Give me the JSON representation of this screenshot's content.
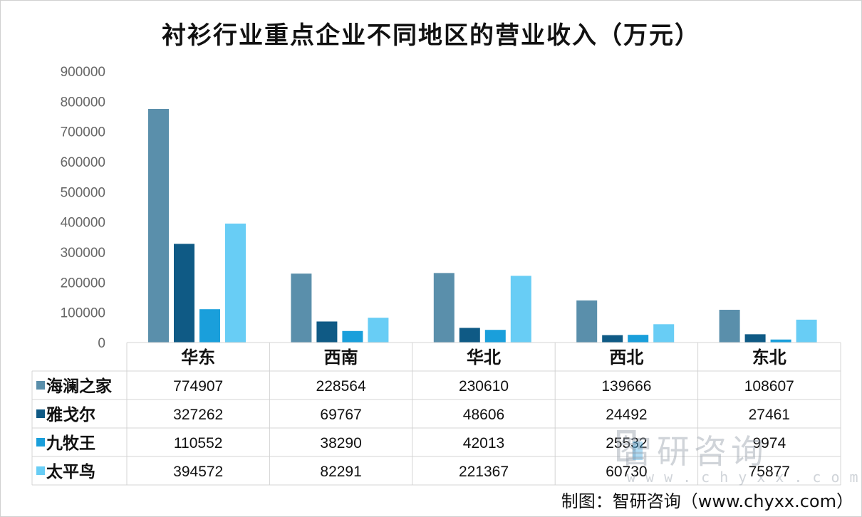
{
  "chart_data": {
    "type": "bar",
    "title": "衬衫行业重点企业不同地区的营业收入（万元）",
    "categories": [
      "华东",
      "西南",
      "华北",
      "西北",
      "东北"
    ],
    "series": [
      {
        "name": "海澜之家",
        "color": "#5a8fab",
        "values": [
          774907,
          228564,
          230610,
          139666,
          108607
        ]
      },
      {
        "name": "雅戈尔",
        "color": "#0f5a85",
        "values": [
          327262,
          69767,
          48606,
          24492,
          27461
        ]
      },
      {
        "name": "九牧王",
        "color": "#1a9fdb",
        "values": [
          110552,
          38290,
          42013,
          25532,
          9974
        ]
      },
      {
        "name": "太平鸟",
        "color": "#68cdf5",
        "values": [
          394572,
          82291,
          221367,
          60730,
          75877
        ]
      }
    ],
    "ylim": [
      0,
      900000
    ],
    "yticks": [
      "0",
      "100000",
      "200000",
      "300000",
      "400000",
      "500000",
      "600000",
      "700000",
      "800000",
      "900000"
    ],
    "grid": false,
    "legend": "data-table-left",
    "source": "制图：智研咨询（www.chyxx.com）"
  },
  "watermark": {
    "text": "智研咨询",
    "url": "www.chyxx.com"
  }
}
